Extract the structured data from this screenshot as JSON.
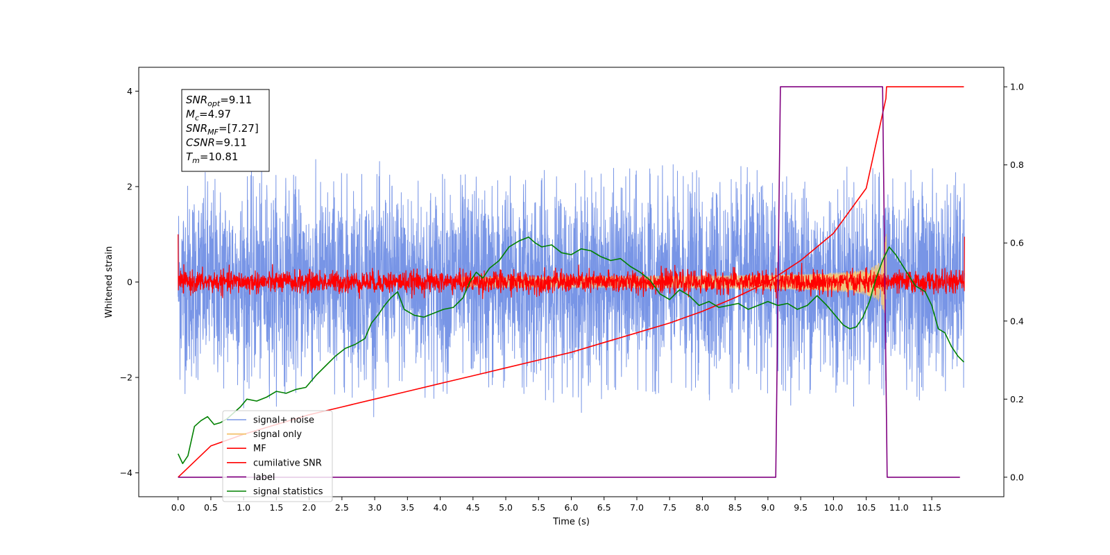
{
  "chart_data": {
    "type": "line",
    "xlabel": "Time (s)",
    "ylabel": "Whitened strain",
    "xlim": [
      -0.6,
      12.6
    ],
    "ylim": [
      -4.5,
      4.5
    ],
    "ylim_right": [
      -0.05,
      1.05
    ],
    "x_ticks": [
      "0.0",
      "0.5",
      "1.0",
      "1.5",
      "2.0",
      "2.5",
      "3.0",
      "3.5",
      "4.0",
      "4.5",
      "5.0",
      "5.5",
      "6.0",
      "6.5",
      "7.0",
      "7.5",
      "8.0",
      "8.5",
      "9.0",
      "9.5",
      "10.0",
      "10.5",
      "11.0",
      "11.5"
    ],
    "y_ticks_left": [
      "4",
      "2",
      "0",
      "−2",
      "−4"
    ],
    "y_tick_values_left": [
      4,
      2,
      0,
      -2,
      -4
    ],
    "y_ticks_right": [
      "1.0",
      "0.8",
      "0.6",
      "0.4",
      "0.2",
      "0.0"
    ],
    "y_tick_values_right": [
      1.0,
      0.8,
      0.6,
      0.4,
      0.2,
      0.0
    ],
    "legend_position": "bottom-left",
    "annotation": {
      "lines": [
        {
          "label": "SNR",
          "sub": "opt",
          "value": "=9.11"
        },
        {
          "label": "M",
          "sub": "c",
          "value": "=4.97"
        },
        {
          "label": "SNR",
          "sub": "MF",
          "value": "=[7.27]"
        },
        {
          "label": "CSNR",
          "sub": "",
          "value": "=9.11"
        },
        {
          "label": "T",
          "sub": "m",
          "value": "=10.81"
        }
      ]
    },
    "series": [
      {
        "name": "signal+ noise",
        "color": "#7895e6",
        "axis": "left",
        "style": "noise",
        "amplitude": 1.6,
        "x_range": [
          0,
          12
        ]
      },
      {
        "name": "signal only",
        "color": "#f5c778",
        "axis": "left",
        "style": "chirp",
        "x_range": [
          0,
          10.81
        ]
      },
      {
        "name": "MF",
        "color": "#ff0000",
        "axis": "left",
        "style": "noise",
        "amplitude": 0.18,
        "x_range": [
          0,
          12
        ]
      },
      {
        "name": "cumilative SNR",
        "color": "#ff0000",
        "axis": "right",
        "x": [
          0,
          0.5,
          1,
          1.5,
          2,
          2.5,
          3,
          3.5,
          4,
          4.5,
          5,
          5.5,
          6,
          6.5,
          7,
          7.5,
          8,
          8.5,
          9,
          9.5,
          10,
          10.5,
          10.8,
          10.81,
          11,
          11.5,
          11.99
        ],
        "y": [
          0.0,
          0.08,
          0.11,
          0.135,
          0.16,
          0.18,
          0.2,
          0.22,
          0.24,
          0.26,
          0.28,
          0.3,
          0.32,
          0.345,
          0.37,
          0.395,
          0.425,
          0.46,
          0.5,
          0.555,
          0.625,
          0.74,
          0.97,
          1.0,
          1.0,
          1.0,
          1.0
        ]
      },
      {
        "name": "label",
        "color": "#800080",
        "axis": "right",
        "x": [
          0,
          9.12,
          9.19,
          10.75,
          10.82,
          11.93
        ],
        "y": [
          0,
          0,
          1,
          1,
          0,
          0
        ]
      },
      {
        "name": "signal statistics",
        "color": "#008000",
        "axis": "right",
        "x": [
          0.0,
          0.07,
          0.15,
          0.25,
          0.35,
          0.45,
          0.55,
          0.65,
          0.75,
          0.85,
          0.95,
          1.05,
          1.2,
          1.35,
          1.5,
          1.65,
          1.8,
          1.95,
          2.1,
          2.25,
          2.4,
          2.55,
          2.7,
          2.85,
          2.95,
          3.05,
          3.15,
          3.25,
          3.35,
          3.45,
          3.6,
          3.75,
          3.9,
          4.05,
          4.2,
          4.35,
          4.45,
          4.55,
          4.65,
          4.75,
          4.9,
          5.05,
          5.2,
          5.35,
          5.45,
          5.55,
          5.7,
          5.85,
          6.0,
          6.15,
          6.3,
          6.45,
          6.6,
          6.75,
          6.9,
          7.05,
          7.2,
          7.35,
          7.5,
          7.65,
          7.8,
          7.95,
          8.1,
          8.25,
          8.4,
          8.55,
          8.7,
          8.85,
          9.0,
          9.15,
          9.3,
          9.45,
          9.6,
          9.75,
          9.9,
          10.05,
          10.15,
          10.25,
          10.35,
          10.45,
          10.55,
          10.65,
          10.75,
          10.85,
          10.95,
          11.1,
          11.25,
          11.4,
          11.5,
          11.6,
          11.7,
          11.8,
          11.9,
          11.99
        ],
        "y": [
          0.06,
          0.035,
          0.055,
          0.13,
          0.145,
          0.155,
          0.135,
          0.14,
          0.15,
          0.165,
          0.18,
          0.2,
          0.195,
          0.205,
          0.22,
          0.215,
          0.225,
          0.23,
          0.26,
          0.285,
          0.31,
          0.33,
          0.34,
          0.355,
          0.395,
          0.415,
          0.44,
          0.46,
          0.475,
          0.43,
          0.415,
          0.41,
          0.42,
          0.43,
          0.435,
          0.46,
          0.5,
          0.525,
          0.51,
          0.535,
          0.555,
          0.59,
          0.605,
          0.615,
          0.6,
          0.59,
          0.595,
          0.575,
          0.57,
          0.585,
          0.58,
          0.565,
          0.555,
          0.56,
          0.54,
          0.525,
          0.505,
          0.47,
          0.455,
          0.48,
          0.465,
          0.44,
          0.45,
          0.435,
          0.44,
          0.445,
          0.43,
          0.44,
          0.45,
          0.44,
          0.445,
          0.43,
          0.44,
          0.465,
          0.44,
          0.41,
          0.39,
          0.38,
          0.385,
          0.41,
          0.45,
          0.51,
          0.555,
          0.59,
          0.57,
          0.53,
          0.49,
          0.475,
          0.44,
          0.38,
          0.37,
          0.335,
          0.31,
          0.295
        ]
      }
    ]
  }
}
